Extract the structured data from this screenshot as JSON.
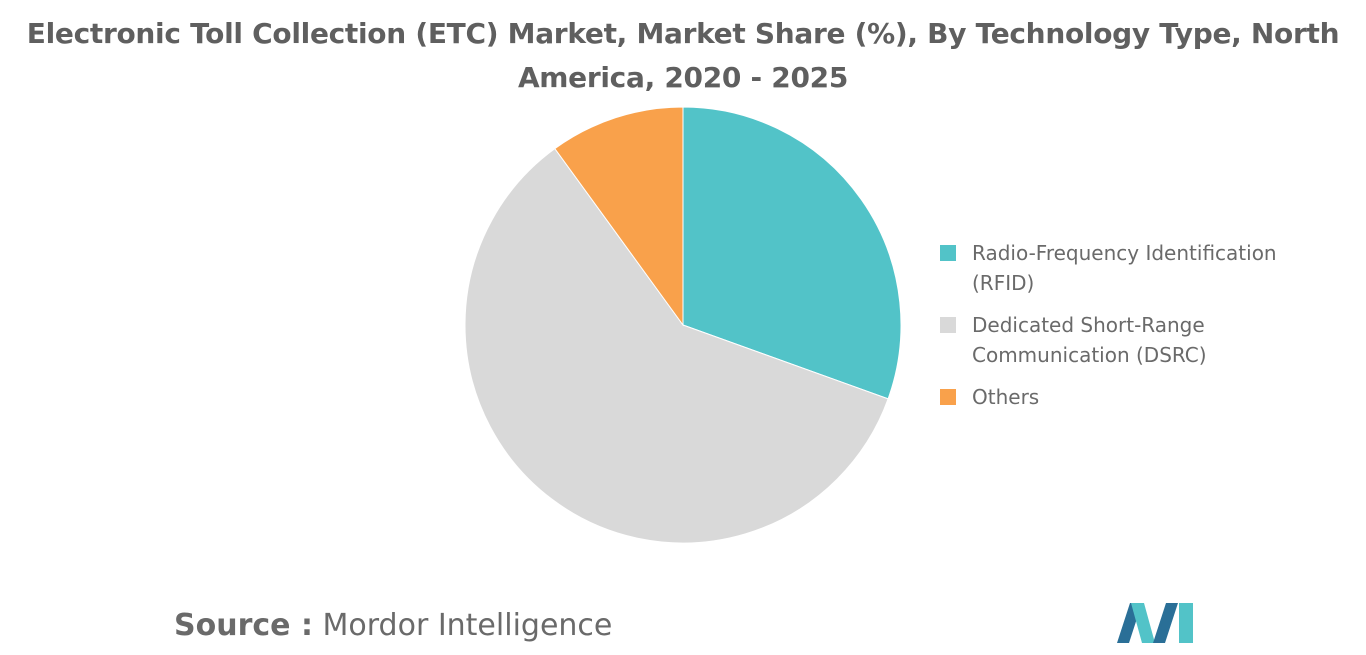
{
  "title_line1": "Electronic Toll Collection (ETC) Market, Market Share (%), By Technology Type, North",
  "title_line2": "America, 2020 - 2025",
  "source": {
    "prefix": "Source :",
    "name": "Mordor Intelligence"
  },
  "legend": [
    {
      "line1": "Radio-Frequency Identification",
      "line2": "(RFID)",
      "color": "#52c3c8"
    },
    {
      "line1": "Dedicated Short-Range",
      "line2": "Communication (DSRC)",
      "color": "#d9d9d9"
    },
    {
      "line1": "Others",
      "line2": "",
      "color": "#f9a14b"
    }
  ],
  "chart_data": {
    "type": "pie",
    "title": "Electronic Toll Collection (ETC) Market, Market Share (%), By Technology Type, North America, 2020 - 2025",
    "start_angle": "12 o'clock",
    "direction": "clockwise",
    "legend_position": "right",
    "slices": [
      {
        "label": "Radio-Frequency Identification (RFID)",
        "value": 30.5,
        "color": "#52c3c8"
      },
      {
        "label": "Dedicated Short-Range Communication (DSRC)",
        "value": 59.5,
        "color": "#d9d9d9"
      },
      {
        "label": "Others",
        "value": 10.0,
        "color": "#f9a14b"
      }
    ]
  }
}
